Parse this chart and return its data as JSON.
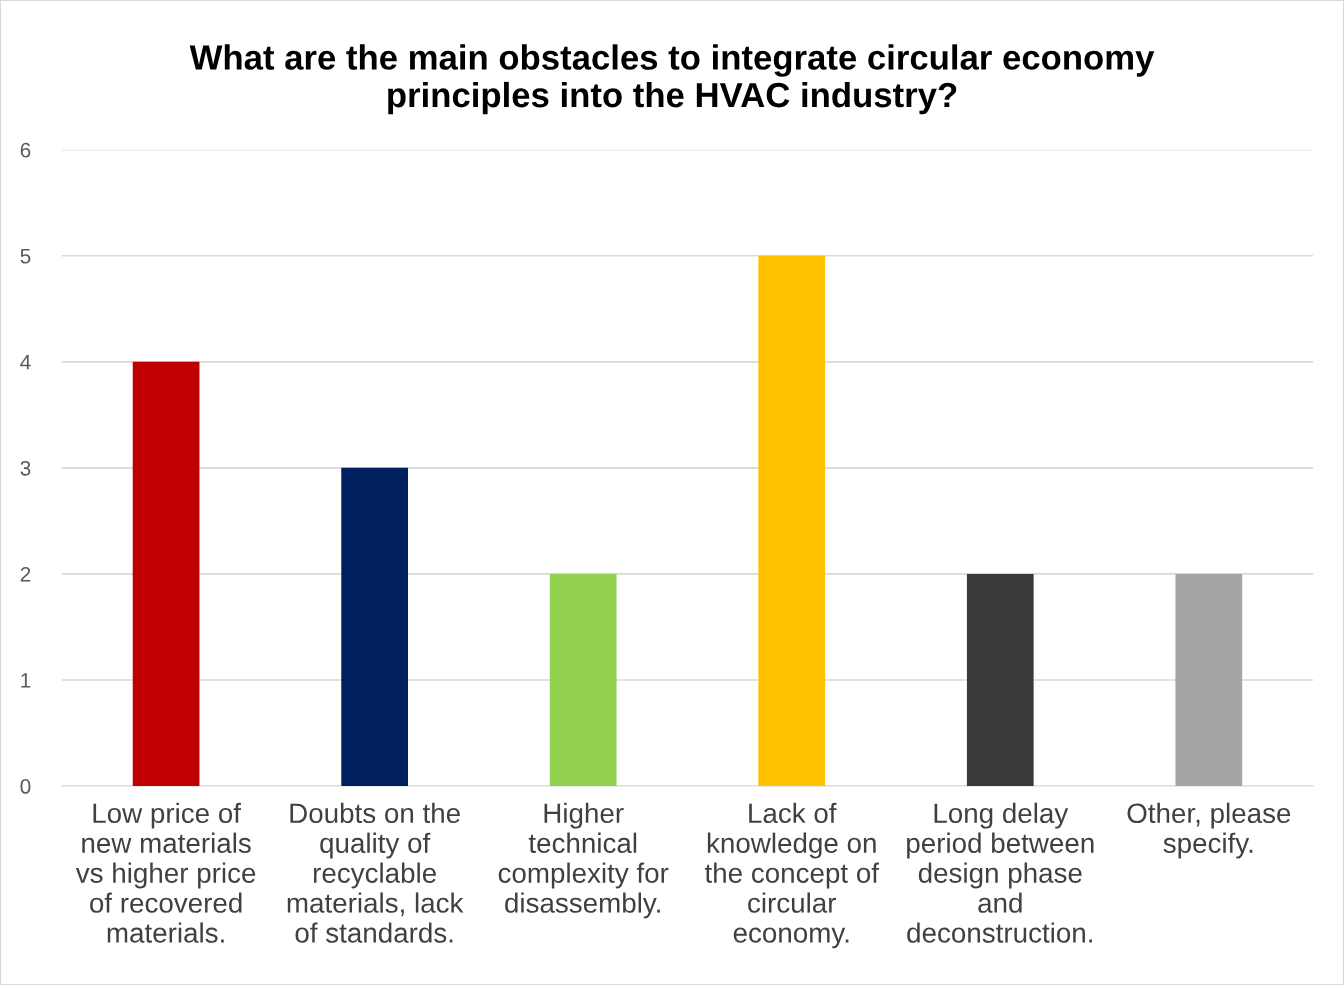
{
  "chart_data": {
    "type": "bar",
    "title": "What are the main obstacles to integrate circular economy\nprinciples into the HVAC industry?",
    "categories": [
      "Low price of\nnew materials\nvs higher price\nof recovered\nmaterials.",
      "Doubts on the\nquality of\nrecyclable\nmaterials, lack\nof standards.",
      "Higher\ntechnical\ncomplexity for\ndisassembly.",
      "Lack of\nknowledge on\nthe concept of\ncircular\neconomy.",
      "Long delay\nperiod between\ndesign phase\nand\ndeconstruction.",
      "Other, please\nspecify."
    ],
    "values": [
      4,
      3,
      2,
      5,
      2,
      2
    ],
    "colors": [
      "#c00000",
      "#002060",
      "#92d050",
      "#ffc000",
      "#3a3a3a",
      "#a5a5a5"
    ],
    "ylim": [
      0,
      6
    ],
    "yticks": [
      0,
      1,
      2,
      3,
      4,
      5,
      6
    ],
    "grid": "y"
  }
}
